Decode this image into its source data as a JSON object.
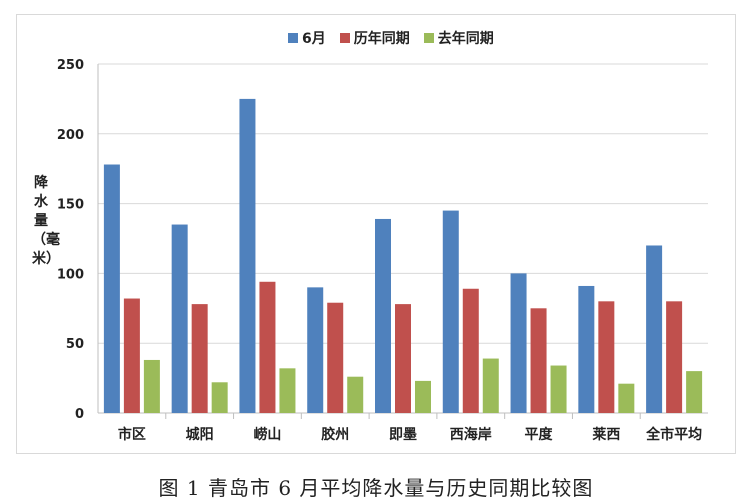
{
  "caption": "图 1  青岛市 6 月平均降水量与历史同期比较图",
  "chart_data": {
    "type": "bar",
    "title": "",
    "ylabel": "降水量（毫米）",
    "xlabel": "",
    "ylim": [
      0,
      250
    ],
    "yticks": [
      0,
      50,
      100,
      150,
      200,
      250
    ],
    "grid": true,
    "legend_position": "top",
    "categories": [
      "市区",
      "城阳",
      "崂山",
      "胶州",
      "即墨",
      "西海岸",
      "平度",
      "莱西",
      "全市平均"
    ],
    "series": [
      {
        "name": "6月",
        "color": "#4f81bd",
        "values": [
          178,
          135,
          225,
          90,
          139,
          145,
          100,
          91,
          120
        ]
      },
      {
        "name": "历年同期",
        "color": "#c0504d",
        "values": [
          82,
          78,
          94,
          79,
          78,
          89,
          75,
          80,
          80
        ]
      },
      {
        "name": "去年同期",
        "color": "#9bbb59",
        "values": [
          38,
          22,
          32,
          26,
          23,
          39,
          34,
          21,
          30
        ]
      }
    ]
  }
}
